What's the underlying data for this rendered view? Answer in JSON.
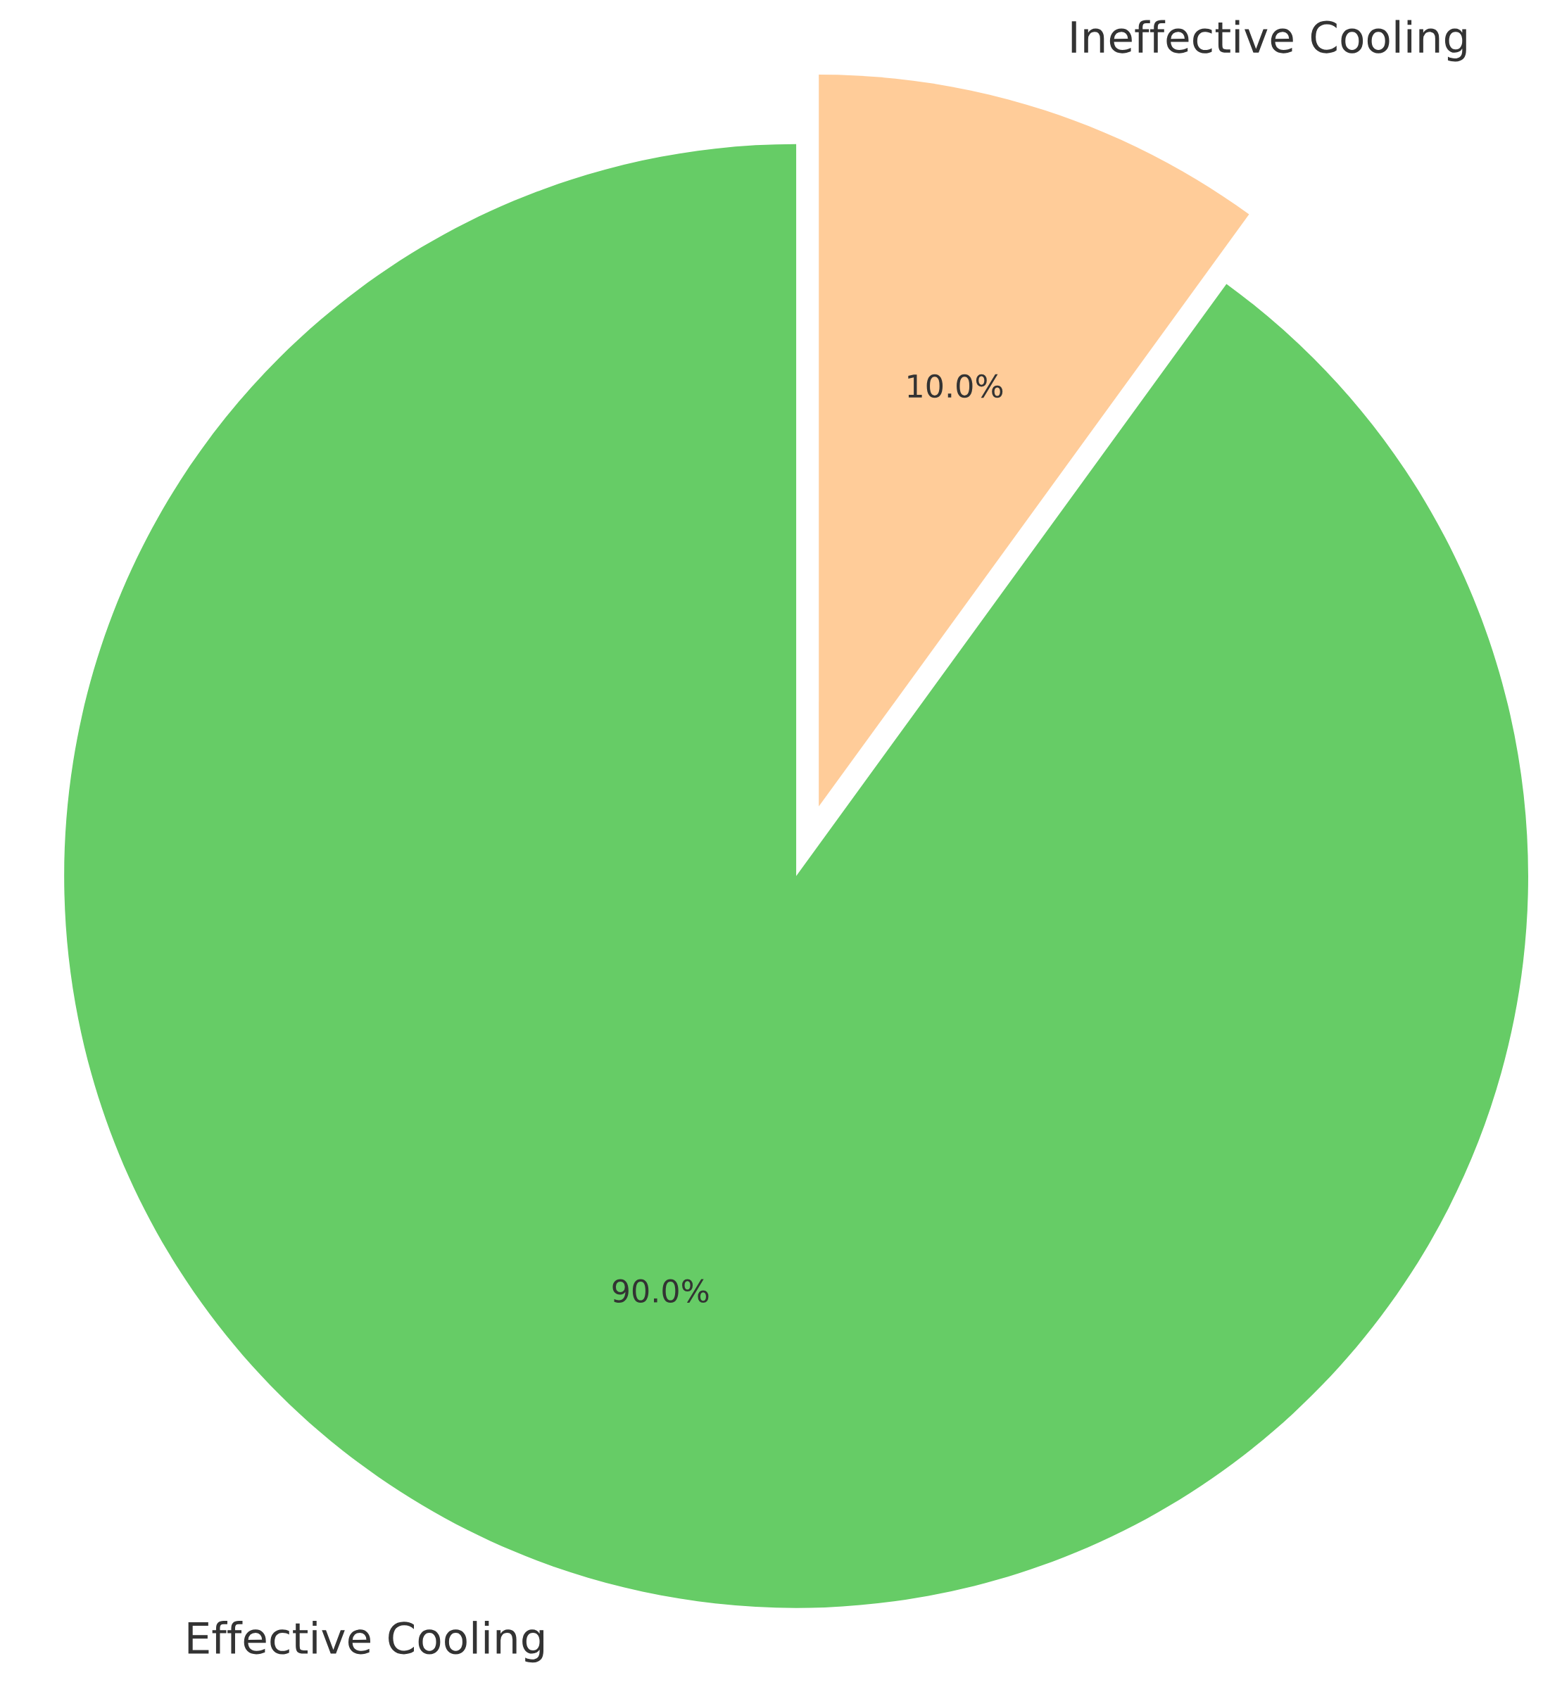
{
  "chart_data": {
    "type": "pie",
    "categories": [
      "Effective Cooling",
      "Ineffective Cooling"
    ],
    "values": [
      90,
      10
    ],
    "colors": [
      "#66cc66",
      "#ffcc99"
    ],
    "value_labels": [
      "90.0%",
      "10.0%"
    ]
  }
}
